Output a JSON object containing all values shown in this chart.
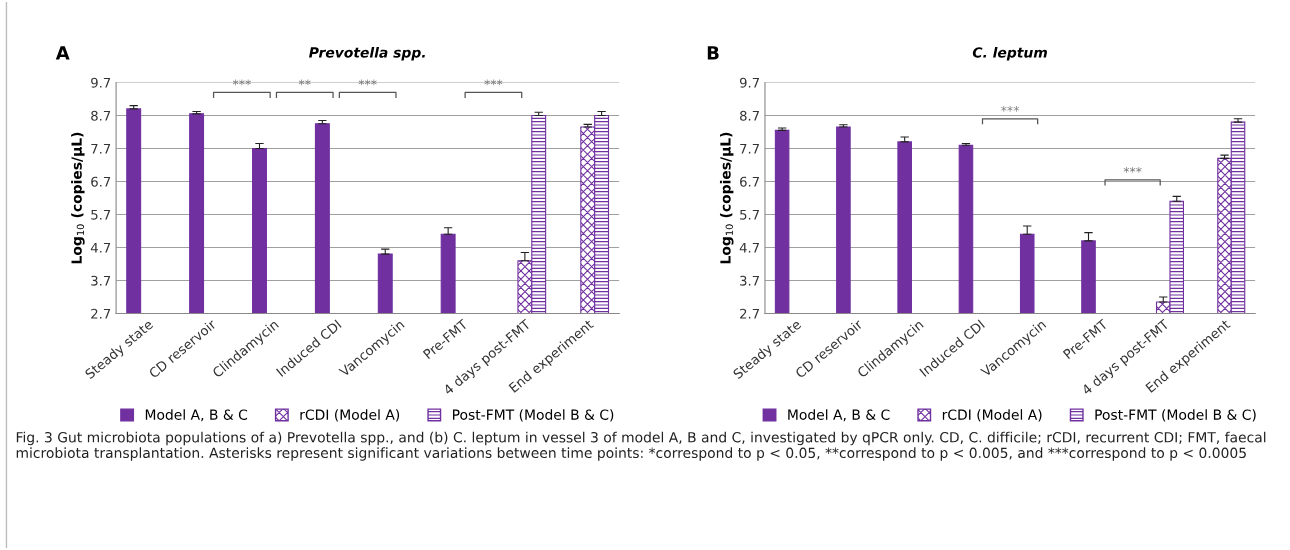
{
  "chart_data": [
    {
      "type": "bar",
      "title": "Prevotella spp.",
      "ylabel": "Log$_{10}$ (copies/μL)",
      "categories": [
        "Steady state",
        "CD reservoir",
        "Clindamycin",
        "Induced CDI",
        "Vancomycin",
        "Pre-FMT",
        "4 days post-FMT",
        "End experiment"
      ],
      "series": [
        {
          "name": "Model A, B & C",
          "color": "#7030a0",
          "values": [
            8.9,
            8.75,
            7.7,
            8.45,
            4.5,
            5.1,
            null,
            null
          ],
          "errors": [
            0.1,
            0.07,
            0.15,
            0.1,
            0.15,
            0.2,
            null,
            null
          ]
        },
        {
          "name": "rCDI (Model A)",
          "color": "#7030a0",
          "values": [
            null,
            null,
            null,
            null,
            null,
            null,
            4.3,
            8.35
          ],
          "errors": [
            null,
            null,
            null,
            null,
            null,
            null,
            0.25,
            0.08
          ]
        },
        {
          "name": "Post-FMT (Model B & C)",
          "color": "#7030a0",
          "values": [
            null,
            null,
            null,
            null,
            null,
            null,
            8.7,
            8.7
          ],
          "errors": [
            null,
            null,
            null,
            null,
            null,
            null,
            0.1,
            0.12
          ]
        }
      ],
      "ylim": [
        2.7,
        9.7
      ],
      "yticks": [
        2.7,
        3.7,
        4.7,
        5.7,
        6.7,
        7.7,
        8.7,
        9.7
      ],
      "grid": "y",
      "legend": "bottom",
      "annotations": [
        "A",
        "***",
        "**",
        "***",
        "***",
        "Fig. 3 Gut microbiota populations of a) Prevotella spp., and (b) C. leptum in vessel 3 of model A, B and C, investigated by qPCR only. CD, C. difficile; rCDI, recurrent CDI; FMT, faecal microbiota transplantation. Asterisks represent significant variations between time points: *correspond to p < 0.05, **correspond to p < 0.005, and ***correspond to p < 0.0005"
      ]
    },
    {
      "type": "bar",
      "title": "C. leptum",
      "ylabel": "Log$_{10}$ (copies/μL)",
      "categories": [
        "Steady state",
        "CD reservoir",
        "Clindamycin",
        "Induced CDI",
        "Vancomycin",
        "Pre-FMT",
        "4 days post-FMT",
        "End experiment"
      ],
      "series": [
        {
          "name": "Model A, B & C",
          "color": "#7030a0",
          "values": [
            8.25,
            8.35,
            7.9,
            7.8,
            5.1,
            4.9,
            null,
            null
          ],
          "errors": [
            0.07,
            0.07,
            0.15,
            0.05,
            0.25,
            0.25,
            null,
            null
          ]
        },
        {
          "name": "rCDI (Model A)",
          "color": "#7030a0",
          "values": [
            null,
            null,
            null,
            null,
            null,
            null,
            3.05,
            7.4
          ],
          "errors": [
            null,
            null,
            null,
            null,
            null,
            null,
            0.15,
            0.1
          ]
        },
        {
          "name": "Post-FMT (Model B & C)",
          "color": "#7030a0",
          "values": [
            null,
            null,
            null,
            null,
            null,
            null,
            6.1,
            8.5
          ],
          "errors": [
            null,
            null,
            null,
            null,
            null,
            null,
            0.15,
            0.1
          ]
        }
      ],
      "ylim": [
        2.7,
        9.7
      ],
      "yticks": [
        2.7,
        3.7,
        4.7,
        5.7,
        6.7,
        7.7,
        8.7,
        9.7
      ],
      "grid": "y",
      "legend": "bottom",
      "annotations": [
        "B",
        "***",
        "***"
      ]
    }
  ]
}
